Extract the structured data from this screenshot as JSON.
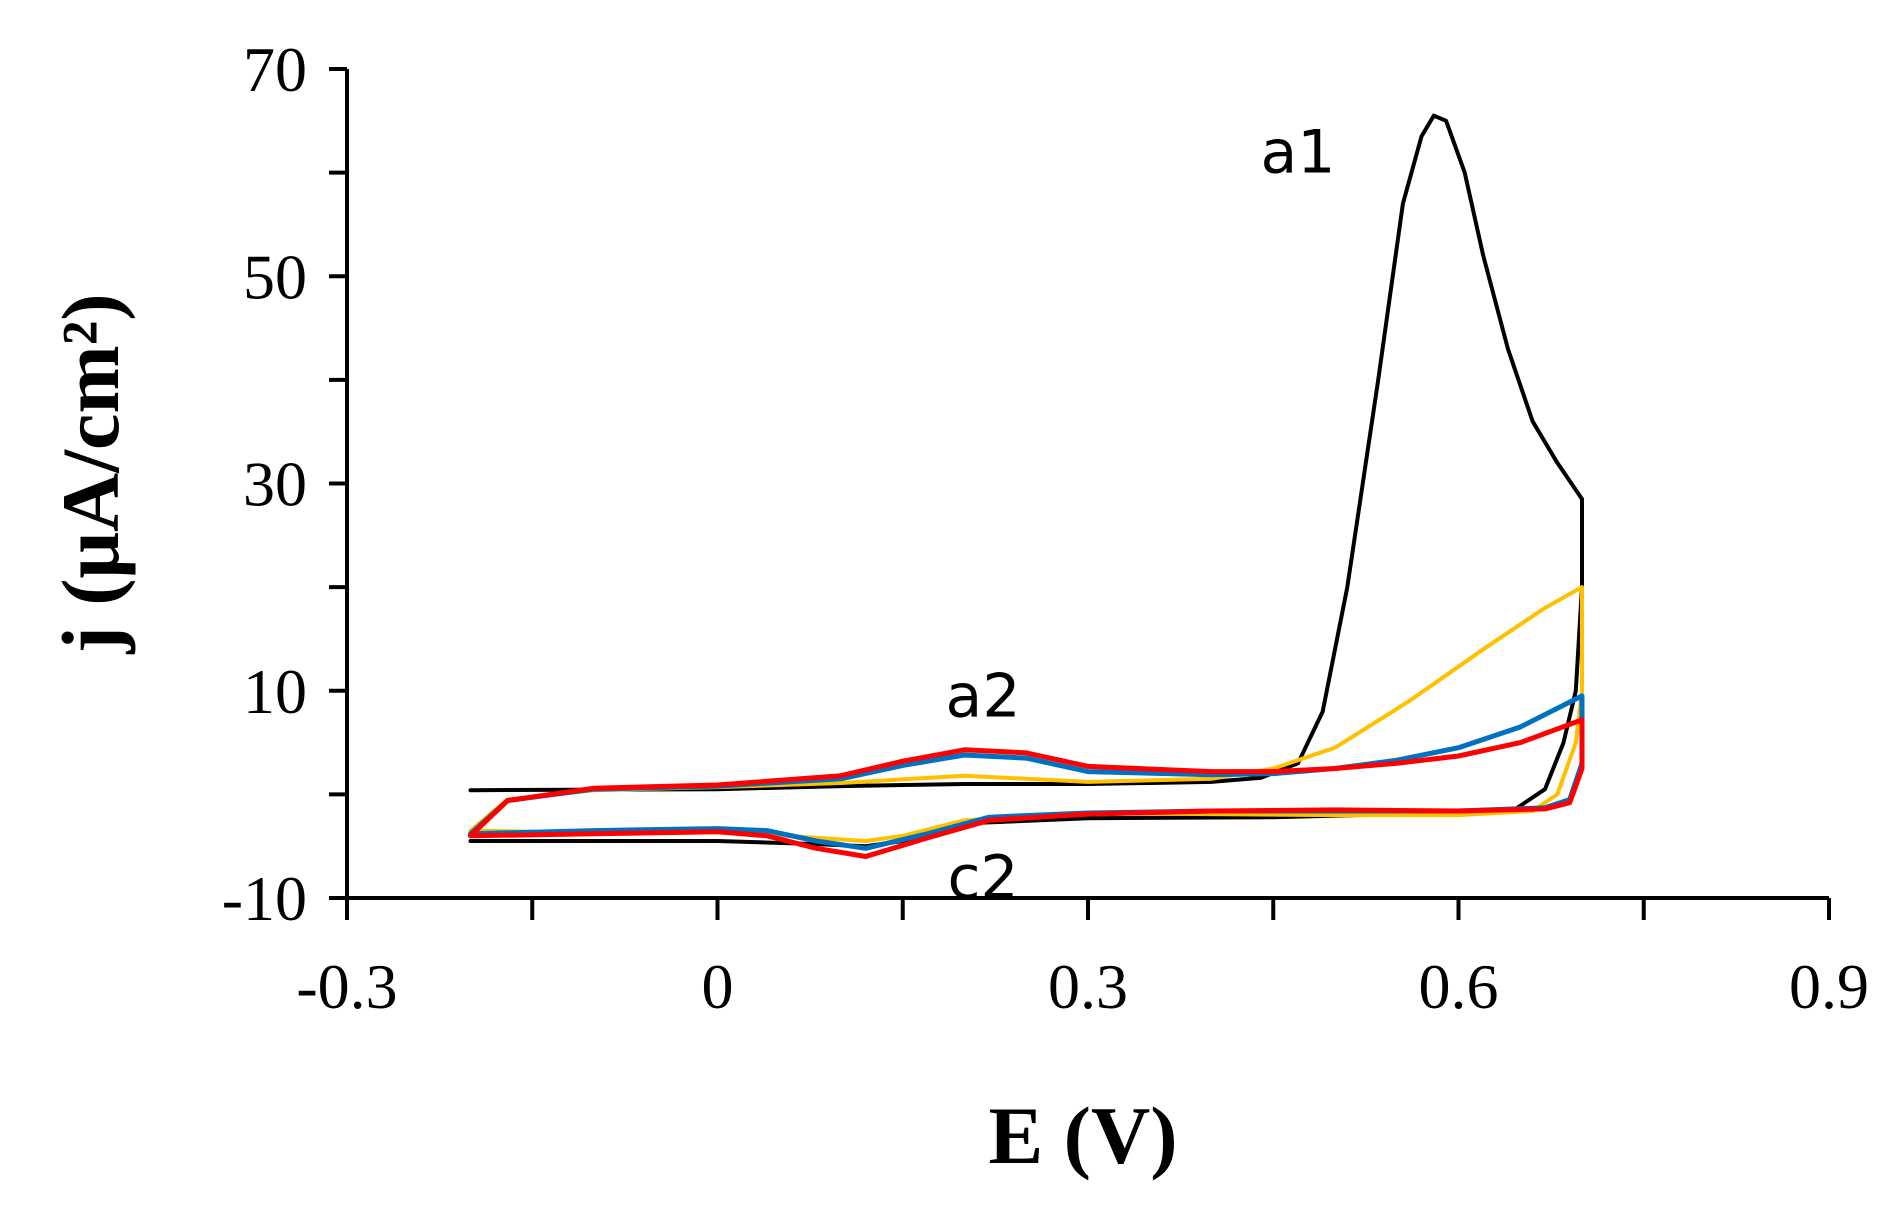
{
  "chart_data": {
    "type": "line",
    "title": "",
    "xlabel": "E (V)",
    "ylabel": "j (μA/cm²)",
    "xlim": [
      -0.3,
      0.9
    ],
    "ylim": [
      -10,
      70
    ],
    "xticks": [
      -0.3,
      0,
      0.3,
      0.6,
      0.9
    ],
    "xtick_labels": [
      "-0.3",
      "0",
      "0.3",
      "0.6",
      "0.9"
    ],
    "yticks": [
      -10,
      10,
      30,
      50,
      70
    ],
    "ytick_labels": [
      "-10",
      "10",
      "30",
      "50",
      "70"
    ],
    "grid": false,
    "legend": "none",
    "annotations": [
      {
        "text": "a1",
        "x": 0.47,
        "y": 60
      },
      {
        "text": "a2",
        "x": 0.215,
        "y": 7.5
      },
      {
        "text": "c2",
        "x": 0.215,
        "y": -10
      }
    ],
    "series": [
      {
        "name": "black",
        "color": "#000000",
        "points": [
          [
            -0.2,
            0.4
          ],
          [
            0.0,
            0.5
          ],
          [
            0.1,
            0.8
          ],
          [
            0.2,
            1.0
          ],
          [
            0.3,
            1.0
          ],
          [
            0.4,
            1.2
          ],
          [
            0.44,
            1.6
          ],
          [
            0.47,
            3.0
          ],
          [
            0.49,
            8.0
          ],
          [
            0.51,
            20.0
          ],
          [
            0.535,
            40.0
          ],
          [
            0.555,
            57.0
          ],
          [
            0.57,
            63.5
          ],
          [
            0.58,
            65.5
          ],
          [
            0.59,
            65.0
          ],
          [
            0.605,
            60.0
          ],
          [
            0.62,
            52.0
          ],
          [
            0.64,
            43.0
          ],
          [
            0.66,
            36.0
          ],
          [
            0.68,
            32.0
          ],
          [
            0.7,
            28.5
          ],
          [
            0.7,
            20.0
          ],
          [
            0.695,
            10.0
          ],
          [
            0.685,
            5.0
          ],
          [
            0.67,
            0.5
          ],
          [
            0.645,
            -1.5
          ],
          [
            0.61,
            -1.8
          ],
          [
            0.55,
            -1.9
          ],
          [
            0.45,
            -2.2
          ],
          [
            0.3,
            -2.3
          ],
          [
            0.2,
            -2.8
          ],
          [
            0.15,
            -4.5
          ],
          [
            0.12,
            -5.0
          ],
          [
            0.08,
            -4.8
          ],
          [
            0.0,
            -4.5
          ],
          [
            -0.1,
            -4.5
          ],
          [
            -0.2,
            -4.5
          ]
        ]
      },
      {
        "name": "yellow",
        "color": "#FFC000",
        "points": [
          [
            -0.2,
            -3.5
          ],
          [
            -0.17,
            -0.5
          ],
          [
            -0.1,
            0.4
          ],
          [
            0.0,
            0.7
          ],
          [
            0.1,
            1.1
          ],
          [
            0.2,
            1.8
          ],
          [
            0.3,
            1.2
          ],
          [
            0.4,
            1.5
          ],
          [
            0.45,
            2.5
          ],
          [
            0.5,
            4.5
          ],
          [
            0.56,
            9.0
          ],
          [
            0.62,
            14.0
          ],
          [
            0.67,
            18.0
          ],
          [
            0.7,
            20.0
          ],
          [
            0.7,
            10.0
          ],
          [
            0.695,
            5.0
          ],
          [
            0.68,
            0.0
          ],
          [
            0.66,
            -1.6
          ],
          [
            0.6,
            -2.0
          ],
          [
            0.5,
            -2.0
          ],
          [
            0.4,
            -1.9
          ],
          [
            0.3,
            -1.8
          ],
          [
            0.2,
            -2.5
          ],
          [
            0.15,
            -4.0
          ],
          [
            0.12,
            -4.5
          ],
          [
            0.08,
            -4.2
          ],
          [
            0.0,
            -3.5
          ],
          [
            -0.1,
            -3.7
          ],
          [
            -0.2,
            -3.5
          ]
        ]
      },
      {
        "name": "blue",
        "color": "#0070C0",
        "points": [
          [
            -0.2,
            -3.8
          ],
          [
            -0.17,
            -0.6
          ],
          [
            -0.1,
            0.5
          ],
          [
            0.0,
            0.8
          ],
          [
            0.1,
            1.5
          ],
          [
            0.15,
            2.8
          ],
          [
            0.2,
            3.8
          ],
          [
            0.25,
            3.5
          ],
          [
            0.3,
            2.2
          ],
          [
            0.4,
            1.9
          ],
          [
            0.45,
            2.0
          ],
          [
            0.5,
            2.5
          ],
          [
            0.55,
            3.3
          ],
          [
            0.6,
            4.5
          ],
          [
            0.65,
            6.5
          ],
          [
            0.7,
            9.5
          ],
          [
            0.7,
            3.0
          ],
          [
            0.69,
            -0.5
          ],
          [
            0.67,
            -1.3
          ],
          [
            0.6,
            -1.6
          ],
          [
            0.5,
            -1.6
          ],
          [
            0.4,
            -1.6
          ],
          [
            0.3,
            -1.8
          ],
          [
            0.22,
            -2.2
          ],
          [
            0.17,
            -3.8
          ],
          [
            0.12,
            -5.2
          ],
          [
            0.08,
            -4.5
          ],
          [
            0.04,
            -3.5
          ],
          [
            0.0,
            -3.3
          ],
          [
            -0.1,
            -3.5
          ],
          [
            -0.2,
            -3.8
          ]
        ]
      },
      {
        "name": "red",
        "color": "#FF0000",
        "points": [
          [
            -0.2,
            -4.0
          ],
          [
            -0.17,
            -0.6
          ],
          [
            -0.1,
            0.6
          ],
          [
            0.0,
            0.9
          ],
          [
            0.1,
            1.8
          ],
          [
            0.15,
            3.2
          ],
          [
            0.2,
            4.3
          ],
          [
            0.25,
            4.0
          ],
          [
            0.3,
            2.7
          ],
          [
            0.4,
            2.2
          ],
          [
            0.45,
            2.2
          ],
          [
            0.5,
            2.5
          ],
          [
            0.55,
            3.0
          ],
          [
            0.6,
            3.7
          ],
          [
            0.65,
            5.0
          ],
          [
            0.7,
            7.2
          ],
          [
            0.7,
            2.5
          ],
          [
            0.69,
            -0.8
          ],
          [
            0.67,
            -1.4
          ],
          [
            0.6,
            -1.6
          ],
          [
            0.5,
            -1.5
          ],
          [
            0.4,
            -1.6
          ],
          [
            0.3,
            -1.9
          ],
          [
            0.22,
            -2.5
          ],
          [
            0.17,
            -4.2
          ],
          [
            0.12,
            -6.0
          ],
          [
            0.08,
            -5.2
          ],
          [
            0.04,
            -4.0
          ],
          [
            0.0,
            -3.6
          ],
          [
            -0.1,
            -3.8
          ],
          [
            -0.2,
            -4.0
          ]
        ]
      }
    ]
  }
}
